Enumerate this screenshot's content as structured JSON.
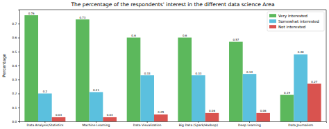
{
  "chart_data": {
    "type": "bar",
    "title": "The percentage of the respondents' interest in the different data science Area",
    "y_label": "Percentage",
    "categories": [
      "Data Analysis/Statistics",
      "Machine Learning",
      "Data Visualization",
      "Big Data (Spark/Hadoop)",
      "Deep Learning",
      "Data Journalism"
    ],
    "series": [
      {
        "name": "Very interested",
        "color": "#5cb85c",
        "values": [
          0.76,
          0.73,
          0.6,
          0.6,
          0.57,
          0.19
        ]
      },
      {
        "name": "Somewhat interested",
        "color": "#5bc0de",
        "values": [
          0.2,
          0.21,
          0.33,
          0.33,
          0.34,
          0.48
        ]
      },
      {
        "name": "Not interested",
        "color": "#d9534f",
        "values": [
          0.03,
          0.03,
          0.05,
          0.06,
          0.06,
          0.27
        ]
      }
    ],
    "ylim": [
      0,
      0.8
    ],
    "yticks": [
      {
        "value": 0,
        "label": "0.0"
      },
      0.1,
      0.2,
      0.3,
      0.4,
      0.5,
      0.6,
      0.7
    ],
    "grid": false,
    "legend": "upper right",
    "data_labels": true
  }
}
